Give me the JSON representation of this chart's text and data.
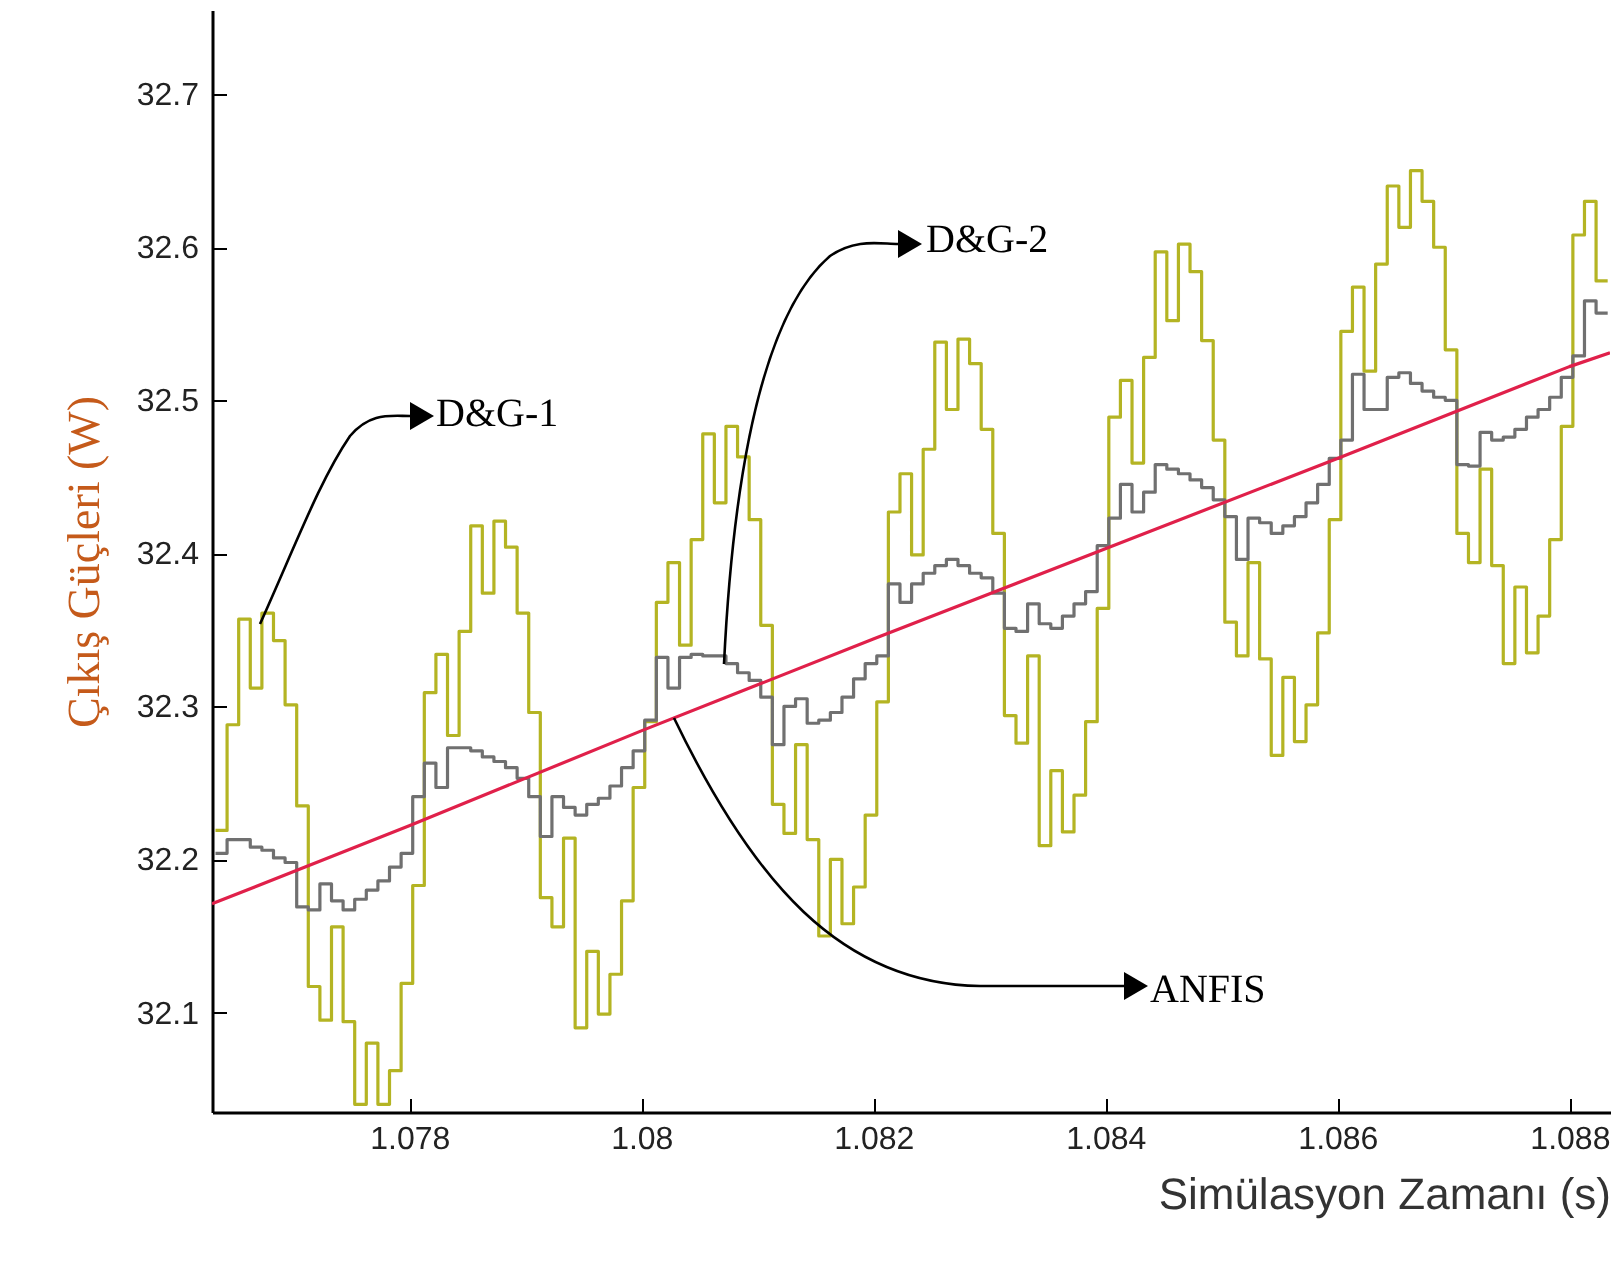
{
  "chart_data": {
    "type": "step",
    "xlabel": "Simülasyon Zamanı (s)",
    "ylabel": "Çıkış Güçleri (W)",
    "x": [
      1.07633,
      1.07643,
      1.07653,
      1.07663,
      1.07673,
      1.07683,
      1.07693,
      1.07703,
      1.07713,
      1.07723,
      1.07733,
      1.07743,
      1.07753,
      1.07763,
      1.07773,
      1.07783,
      1.07793,
      1.07803,
      1.07813,
      1.07823,
      1.07833,
      1.07843,
      1.07853,
      1.07863,
      1.07873,
      1.07883,
      1.07893,
      1.07903,
      1.07913,
      1.07923,
      1.07933,
      1.07943,
      1.07953,
      1.07963,
      1.07973,
      1.07983,
      1.07993,
      1.08003,
      1.08013,
      1.08023,
      1.08033,
      1.08043,
      1.08053,
      1.08063,
      1.08073,
      1.08083,
      1.08093,
      1.08103,
      1.08113,
      1.08123,
      1.08133,
      1.08143,
      1.08153,
      1.08163,
      1.08173,
      1.08183,
      1.08193,
      1.08203,
      1.08213,
      1.08223,
      1.08233,
      1.08243,
      1.08253,
      1.08263,
      1.08273,
      1.08283,
      1.08293,
      1.08303,
      1.08313,
      1.08323,
      1.08333,
      1.08343,
      1.08353,
      1.08363,
      1.08373,
      1.08383,
      1.08393,
      1.08403,
      1.08413,
      1.08423,
      1.08433,
      1.08443,
      1.08453,
      1.08463,
      1.08473,
      1.08483,
      1.08493,
      1.08503,
      1.08513,
      1.08523,
      1.08533,
      1.08543,
      1.08553,
      1.08563,
      1.08573,
      1.08583,
      1.08593,
      1.08603,
      1.08613,
      1.08623,
      1.08633,
      1.08643,
      1.08653,
      1.08663,
      1.08673,
      1.08683,
      1.08693,
      1.08703,
      1.08713,
      1.08723,
      1.08733,
      1.08743,
      1.08753,
      1.08763,
      1.08773,
      1.08783,
      1.08793,
      1.08803,
      1.08813,
      1.08823,
      1.08833
    ],
    "series": [
      {
        "name": "D&G-1",
        "color": "#b4b423",
        "values": [
          32.219,
          32.288,
          32.357,
          32.312,
          32.361,
          32.343,
          32.301,
          32.235,
          32.117,
          32.095,
          32.156,
          32.094,
          32.04,
          32.08,
          32.04,
          32.062,
          32.119,
          32.183,
          32.309,
          32.334,
          32.281,
          32.349,
          32.418,
          32.374,
          32.421,
          32.404,
          32.361,
          32.296,
          32.175,
          32.156,
          32.214,
          32.09,
          32.14,
          32.099,
          32.125,
          32.173,
          32.247,
          32.29,
          32.368,
          32.394,
          32.34,
          32.409,
          32.478,
          32.433,
          32.483,
          32.463,
          32.422,
          32.353,
          32.236,
          32.217,
          32.275,
          32.213,
          32.15,
          32.2,
          32.158,
          32.182,
          32.229,
          32.303,
          32.427,
          32.452,
          32.399,
          32.468,
          32.538,
          32.494,
          32.54,
          32.524,
          32.481,
          32.413,
          32.294,
          32.276,
          32.333,
          32.209,
          32.258,
          32.218,
          32.242,
          32.29,
          32.364,
          32.489,
          32.513,
          32.459,
          32.528,
          32.597,
          32.552,
          32.602,
          32.584,
          32.539,
          32.474,
          32.355,
          32.333,
          32.394,
          32.331,
          32.268,
          32.319,
          32.277,
          32.301,
          32.348,
          32.422,
          32.545,
          32.574,
          32.519,
          32.589,
          32.64,
          32.613,
          32.65,
          32.63,
          32.6,
          32.533,
          32.413,
          32.394,
          32.455,
          32.392,
          32.328,
          32.378,
          32.335,
          32.359,
          32.409,
          32.483,
          32.608,
          32.63,
          32.578,
          32.578
        ]
      },
      {
        "name": "D&G-2",
        "color": "#707070",
        "values": [
          32.204,
          32.213,
          32.213,
          32.208,
          32.206,
          32.201,
          32.198,
          32.169,
          32.167,
          32.184,
          32.173,
          32.167,
          32.174,
          32.18,
          32.186,
          32.195,
          32.204,
          32.241,
          32.263,
          32.247,
          32.273,
          32.273,
          32.271,
          32.267,
          32.264,
          32.26,
          32.253,
          32.241,
          32.215,
          32.241,
          32.234,
          32.229,
          32.236,
          32.24,
          32.248,
          32.26,
          32.271,
          32.291,
          32.332,
          32.312,
          32.332,
          32.334,
          32.333,
          32.333,
          32.328,
          32.322,
          32.317,
          32.306,
          32.275,
          32.3,
          32.305,
          32.289,
          32.291,
          32.296,
          32.306,
          32.318,
          32.328,
          32.333,
          32.38,
          32.368,
          32.38,
          32.387,
          32.392,
          32.396,
          32.392,
          32.387,
          32.384,
          32.374,
          32.351,
          32.349,
          32.367,
          32.354,
          32.351,
          32.359,
          32.367,
          32.375,
          32.405,
          32.423,
          32.445,
          32.427,
          32.44,
          32.458,
          32.455,
          32.452,
          32.448,
          32.443,
          32.435,
          32.424,
          32.396,
          32.423,
          32.42,
          32.413,
          32.418,
          32.424,
          32.433,
          32.445,
          32.462,
          32.474,
          32.517,
          32.494,
          32.494,
          32.515,
          32.518,
          32.511,
          32.506,
          32.502,
          32.5,
          32.458,
          32.457,
          32.479,
          32.474,
          32.476,
          32.481,
          32.489,
          32.494,
          32.502,
          32.515,
          32.529,
          32.565,
          32.557,
          32.557
        ]
      },
      {
        "name": "ANFIS",
        "type": "line",
        "color": "#e0204a",
        "x": [
          1.0763,
          1.078,
          1.08,
          1.082,
          1.084,
          1.086,
          1.088,
          1.08835
        ],
        "values": [
          32.171,
          32.222,
          32.284,
          32.344,
          32.403,
          32.462,
          32.522,
          32.531
        ]
      }
    ],
    "xlim": [
      1.0763,
      1.08835
    ],
    "xticks": [
      1.078,
      1.08,
      1.082,
      1.084,
      1.086,
      1.088
    ],
    "ylim": [
      32.035,
      32.755
    ],
    "yticks": [
      32.1,
      32.2,
      32.3,
      32.4,
      32.5,
      32.6,
      32.7
    ],
    "grid": false
  }
}
